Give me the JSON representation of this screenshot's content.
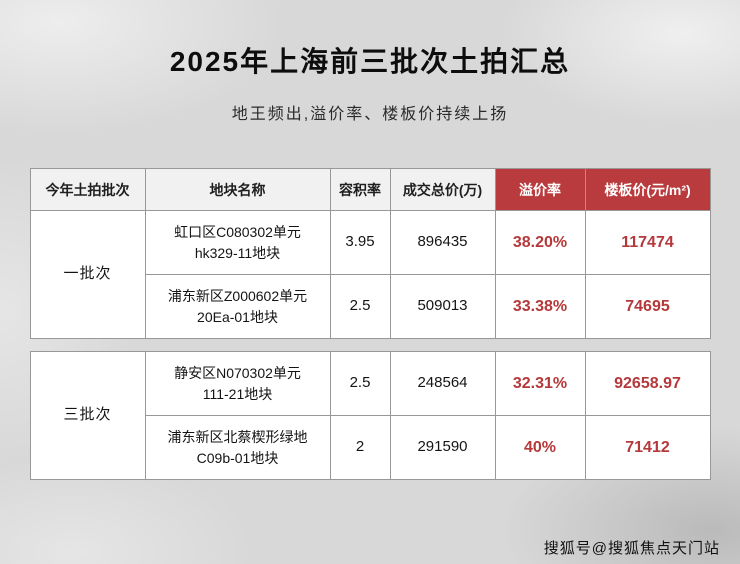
{
  "title": "2025年上海前三批次土拍汇总",
  "subtitle": "地王频出,溢价率、楼板价持续上扬",
  "watermark": "搜狐号@搜狐焦点天门站",
  "colors": {
    "background": "#d8d8d8",
    "header_red": "#b93b3d",
    "value_red": "#b5383a",
    "header_gray": "#f1f1f1",
    "cell_white": "#ffffff",
    "border_gray": "#989898"
  },
  "table": {
    "headers": [
      "今年土拍批次",
      "地块名称",
      "容积率",
      "成交总价(万)",
      "溢价率",
      "楼板价(元/m²)"
    ],
    "groups": [
      {
        "batch": "一批次",
        "rows": [
          {
            "name_line1": "虹口区C080302单元",
            "name_line2": "hk329-11地块",
            "far": "3.95",
            "total": "896435",
            "premium": "38.20%",
            "floor": "117474"
          },
          {
            "name_line1": "浦东新区Z000602单元",
            "name_line2": "20Ea-01地块",
            "far": "2.5",
            "total": "509013",
            "premium": "33.38%",
            "floor": "74695"
          }
        ]
      },
      {
        "batch": "三批次",
        "rows": [
          {
            "name_line1": "静安区N070302单元",
            "name_line2": "111-21地块",
            "far": "2.5",
            "total": "248564",
            "premium": "32.31%",
            "floor": "92658.97"
          },
          {
            "name_line1": "浦东新区北蔡楔形绿地",
            "name_line2": "C09b-01地块",
            "far": "2",
            "total": "291590",
            "premium": "40%",
            "floor": "71412"
          }
        ]
      }
    ]
  }
}
